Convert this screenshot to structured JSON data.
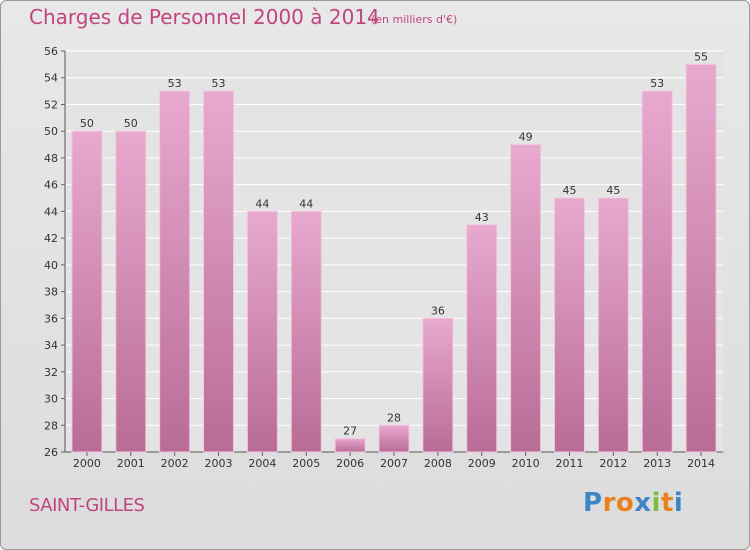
{
  "header": {
    "title": "Charges de Personnel 2000 à 2014",
    "subtitle": "(en milliers d'€)"
  },
  "footer": {
    "town": "SAINT-GILLES",
    "logo": "Proxiti"
  },
  "colors": {
    "title": "#c0457e",
    "bar_top": "#e8a9cf",
    "bar_bottom": "#b86c96",
    "grid": "#ffffff",
    "background": "#e2e2e2"
  },
  "chart_data": {
    "type": "bar",
    "categories": [
      "2000",
      "2001",
      "2002",
      "2003",
      "2004",
      "2005",
      "2006",
      "2007",
      "2008",
      "2009",
      "2010",
      "2011",
      "2012",
      "2013",
      "2014"
    ],
    "values": [
      50,
      50,
      53,
      53,
      44,
      44,
      27,
      28,
      36,
      43,
      49,
      45,
      45,
      53,
      55
    ],
    "title": "Charges de Personnel 2000 à 2014",
    "xlabel": "",
    "ylabel": "",
    "ylim": [
      26,
      56
    ],
    "yticks": [
      26,
      28,
      30,
      32,
      34,
      36,
      38,
      40,
      42,
      44,
      46,
      48,
      50,
      52,
      54,
      56
    ],
    "grid": true,
    "data_labels": true
  }
}
